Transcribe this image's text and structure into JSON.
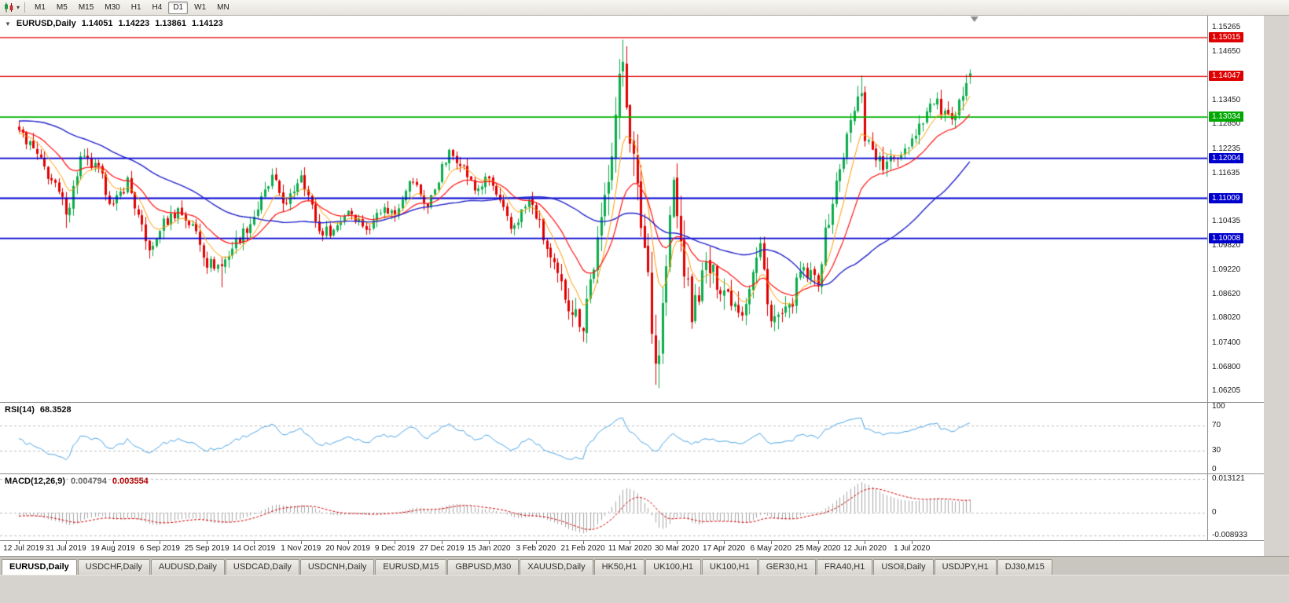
{
  "toolbar": {
    "timeframes": [
      "M1",
      "M5",
      "M15",
      "M30",
      "H1",
      "H4",
      "D1",
      "W1",
      "MN"
    ],
    "active": "D1"
  },
  "main_chart": {
    "symbol": "EURUSD,Daily",
    "open": "1.14051",
    "high": "1.14223",
    "low": "1.13861",
    "close": "1.14123"
  },
  "rsi_panel": {
    "label": "RSI(14)",
    "value": "68.3528",
    "period": 14,
    "levels": [
      70,
      30
    ],
    "line_color": "#4DA6E8",
    "axis_ticks": [
      {
        "label": "100",
        "value": 100
      },
      {
        "label": "70",
        "value": 70
      },
      {
        "label": "30",
        "value": 30
      },
      {
        "label": "0",
        "value": 0
      }
    ]
  },
  "macd_panel": {
    "label": "MACD(12,26,9)",
    "main_value": "0.004794",
    "signal_value": "0.003554",
    "fast": 12,
    "slow": 26,
    "signal": 9,
    "histogram_color": "#A8A8A8",
    "signal_color": "#D40000",
    "axis_ticks": [
      {
        "label": "0.013121",
        "value": 0.013121
      },
      {
        "label": "0",
        "value": 0
      },
      {
        "label": "-0.008933",
        "value": -0.008933
      }
    ]
  },
  "tabs": [
    "EURUSD,Daily",
    "USDCHF,Daily",
    "AUDUSD,Daily",
    "USDCAD,Daily",
    "USDCNH,Daily",
    "EURUSD,M15",
    "GBPUSD,M30",
    "XAUUSD,Daily",
    "HK50,H1",
    "UK100,H1",
    "UK100,H1",
    "GER30,H1",
    "FRA40,H1",
    "USOil,Daily",
    "USDJPY,H1",
    "DJ30,M15"
  ],
  "active_tab": "EURUSD,Daily",
  "chart_data": {
    "type": "candlestick",
    "symbol": "EURUSD",
    "period": "Daily",
    "ohlc_current": [
      1.14051,
      1.14223,
      1.13861,
      1.14123
    ],
    "price_axis_range": [
      1.0593,
      1.1556
    ],
    "y_axis_ticks": [
      "1.15265",
      "1.14650",
      "1.13450",
      "1.12850",
      "1.12235",
      "1.11635",
      "1.10435",
      "1.09820",
      "1.09220",
      "1.08620",
      "1.08020",
      "1.07400",
      "1.06800",
      "1.06205"
    ],
    "price_badges": [
      {
        "label": "1.15015",
        "value": 1.15015,
        "color": "#DE0000"
      },
      {
        "label": "1.14047",
        "value": 1.14047,
        "color": "#DE0000"
      },
      {
        "label": "1.13034",
        "value": 1.13034,
        "color": "#00A800"
      },
      {
        "label": "1.12004",
        "value": 1.12004,
        "color": "#0000CC"
      },
      {
        "label": "1.11009",
        "value": 1.11009,
        "color": "#0000CC"
      },
      {
        "label": "1.10008",
        "value": 1.10008,
        "color": "#0000CC"
      }
    ],
    "horizontal_lines": [
      {
        "value": 1.15015,
        "color": "#E00000",
        "width": 1.3
      },
      {
        "value": 1.14047,
        "color": "#E00000",
        "width": 1.3
      },
      {
        "value": 1.13034,
        "color": "#00B200",
        "width": 1.8
      },
      {
        "value": 1.12004,
        "color": "#0000D0",
        "width": 1.8
      },
      {
        "value": 1.11009,
        "color": "#0000D0",
        "width": 1.8
      },
      {
        "value": 1.10008,
        "color": "#0000D0",
        "width": 1.8
      }
    ],
    "x_labels": [
      {
        "text": "12 Jul 2019",
        "bar": 0
      },
      {
        "text": "31 Jul 2019",
        "bar": 13
      },
      {
        "text": "19 Aug 2019",
        "bar": 26
      },
      {
        "text": "6 Sep 2019",
        "bar": 39
      },
      {
        "text": "25 Sep 2019",
        "bar": 52
      },
      {
        "text": "14 Oct 2019",
        "bar": 65
      },
      {
        "text": "1 Nov 2019",
        "bar": 78
      },
      {
        "text": "20 Nov 2019",
        "bar": 91
      },
      {
        "text": "9 Dec 2019",
        "bar": 104
      },
      {
        "text": "27 Dec 2019",
        "bar": 117
      },
      {
        "text": "15 Jan 2020",
        "bar": 130
      },
      {
        "text": "3 Feb 2020",
        "bar": 143
      },
      {
        "text": "21 Feb 2020",
        "bar": 156
      },
      {
        "text": "11 Mar 2020",
        "bar": 169
      },
      {
        "text": "30 Mar 2020",
        "bar": 182
      },
      {
        "text": "17 Apr 2020",
        "bar": 195
      },
      {
        "text": "6 May 2020",
        "bar": 208
      },
      {
        "text": "25 May 2020",
        "bar": 221
      },
      {
        "text": "12 Jun 2020",
        "bar": 234
      },
      {
        "text": "1 Jul 2020",
        "bar": 247
      }
    ],
    "bars_total": 264,
    "warmup_bars": 60,
    "anchors": [
      [
        -60,
        1.1215
      ],
      [
        -45,
        1.1255
      ],
      [
        -30,
        1.1375
      ],
      [
        -18,
        1.13
      ],
      [
        -8,
        1.124
      ],
      [
        0,
        1.127
      ],
      [
        4,
        1.1221
      ],
      [
        9,
        1.1145
      ],
      [
        13,
        1.1075
      ],
      [
        14,
        1.1088
      ],
      [
        17,
        1.12
      ],
      [
        22,
        1.117
      ],
      [
        26,
        1.1078
      ],
      [
        30,
        1.1145
      ],
      [
        35,
        1.099
      ],
      [
        37,
        1.0972
      ],
      [
        39,
        1.1028
      ],
      [
        44,
        1.1073
      ],
      [
        49,
        1.1017
      ],
      [
        52,
        1.094
      ],
      [
        56,
        1.0932
      ],
      [
        59,
        1.0979
      ],
      [
        64,
        1.104
      ],
      [
        70,
        1.115
      ],
      [
        74,
        1.108
      ],
      [
        78,
        1.1166
      ],
      [
        83,
        1.1018
      ],
      [
        87,
        1.1021
      ],
      [
        91,
        1.1074
      ],
      [
        97,
        1.1018
      ],
      [
        99,
        1.1078
      ],
      [
        104,
        1.1064
      ],
      [
        107,
        1.113
      ],
      [
        109,
        1.1145
      ],
      [
        113,
        1.1078
      ],
      [
        117,
        1.1175
      ],
      [
        119,
        1.1212
      ],
      [
        122,
        1.1195
      ],
      [
        126,
        1.1121
      ],
      [
        130,
        1.115
      ],
      [
        136,
        1.1023
      ],
      [
        141,
        1.1093
      ],
      [
        143,
        1.106
      ],
      [
        147,
        1.0945
      ],
      [
        152,
        1.0838
      ],
      [
        156,
        1.0786
      ],
      [
        157,
        1.0851
      ],
      [
        161,
        1.1026
      ],
      [
        163,
        1.1172
      ],
      [
        167,
        1.1447
      ],
      [
        169,
        1.1271
      ],
      [
        171,
        1.1106
      ],
      [
        174,
        1.0917
      ],
      [
        176,
        1.0695
      ],
      [
        177,
        1.0724
      ],
      [
        181,
        1.1141
      ],
      [
        182,
        1.1048
      ],
      [
        186,
        1.081
      ],
      [
        190,
        1.093
      ],
      [
        195,
        1.0875
      ],
      [
        200,
        1.0822
      ],
      [
        205,
        1.098
      ],
      [
        208,
        1.0795
      ],
      [
        213,
        1.0818
      ],
      [
        216,
        1.0915
      ],
      [
        221,
        1.0898
      ],
      [
        223,
        1.1008
      ],
      [
        226,
        1.1135
      ],
      [
        230,
        1.129
      ],
      [
        233,
        1.1373
      ],
      [
        234,
        1.1256
      ],
      [
        239,
        1.1177
      ],
      [
        244,
        1.1218
      ],
      [
        247,
        1.125
      ],
      [
        250,
        1.1302
      ],
      [
        253,
        1.1345
      ],
      [
        256,
        1.131
      ],
      [
        258,
        1.1282
      ],
      [
        260,
        1.133
      ],
      [
        262,
        1.1405
      ],
      [
        263,
        1.14123
      ]
    ],
    "volatility_anchors": [
      [
        -60,
        0.0042
      ],
      [
        0,
        0.0042
      ],
      [
        40,
        0.0046
      ],
      [
        80,
        0.004
      ],
      [
        120,
        0.0038
      ],
      [
        145,
        0.0052
      ],
      [
        155,
        0.0068
      ],
      [
        160,
        0.0098
      ],
      [
        166,
        0.0125
      ],
      [
        172,
        0.0135
      ],
      [
        180,
        0.0125
      ],
      [
        188,
        0.009
      ],
      [
        200,
        0.0068
      ],
      [
        212,
        0.006
      ],
      [
        228,
        0.0056
      ],
      [
        247,
        0.0046
      ],
      [
        263,
        0.005
      ]
    ],
    "forced_extremes": [
      {
        "bar": 13,
        "low": 1.1027
      },
      {
        "bar": 56,
        "low": 1.0879
      },
      {
        "bar": 156,
        "low": 1.0778
      },
      {
        "bar": 167,
        "high": 1.1495
      },
      {
        "bar": 176,
        "low": 1.0636
      },
      {
        "bar": 177,
        "low": 1.065
      },
      {
        "bar": 233,
        "high": 1.1407
      },
      {
        "bar": 262,
        "high": 1.141
      }
    ],
    "moving_averages": [
      {
        "type": "ema",
        "period": 8,
        "color": "#FF9D00",
        "width": 1
      },
      {
        "type": "ema",
        "period": 20,
        "color": "#FF1212",
        "width": 1.2
      },
      {
        "type": "sma",
        "period": 50,
        "color": "#2424CC",
        "width": 1.4
      }
    ],
    "candle_colors": {
      "bull": "#0BAD4B",
      "bear": "#E10000"
    }
  }
}
